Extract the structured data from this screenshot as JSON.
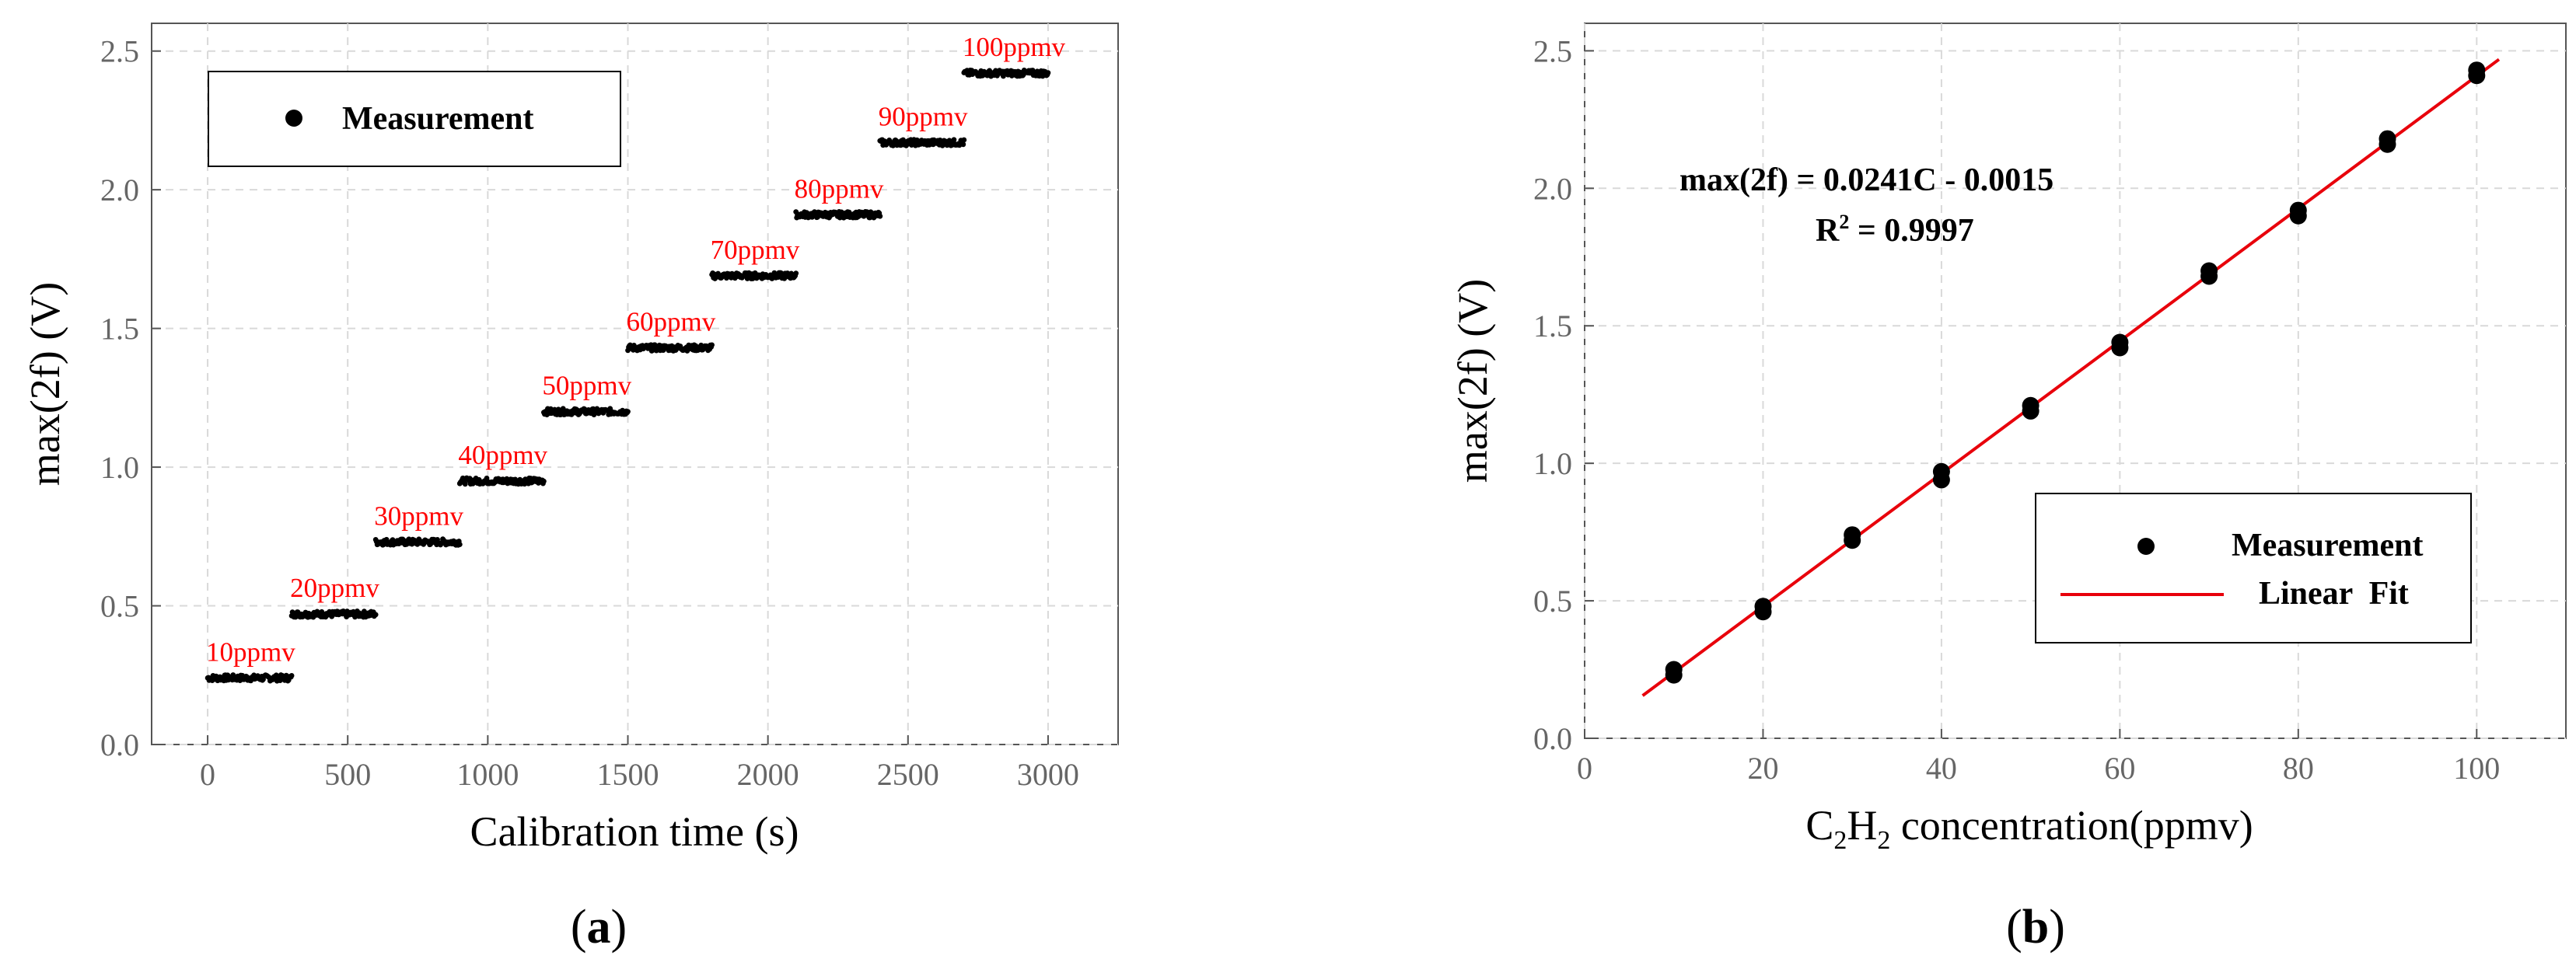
{
  "chart_data": [
    {
      "panel": "a",
      "type": "scatter",
      "xlabel": "Calibration time (s)",
      "ylabel": "max(2f) (V)",
      "xlim": [
        -200,
        3250
      ],
      "ylim": [
        0,
        2.6
      ],
      "xticks": [
        0,
        500,
        1000,
        1500,
        2000,
        2500,
        3000
      ],
      "yticks": [
        0.0,
        0.5,
        1.0,
        1.5,
        2.0,
        2.5
      ],
      "xtick_labels": [
        "0",
        "500",
        "1000",
        "1500",
        "2000",
        "2500",
        "3000"
      ],
      "ytick_labels": [
        "0.0",
        "0.5",
        "1.0",
        "1.5",
        "2.0",
        "2.5"
      ],
      "legend": {
        "entries": [
          "Measurement"
        ],
        "position": "top-left"
      },
      "series": [
        {
          "name": "Measurement",
          "segments": [
            {
              "label": "10ppmv",
              "t_start": 0,
              "t_end": 300,
              "value": 0.24
            },
            {
              "label": "20ppmv",
              "t_start": 300,
              "t_end": 600,
              "value": 0.47
            },
            {
              "label": "30ppmv",
              "t_start": 600,
              "t_end": 900,
              "value": 0.73
            },
            {
              "label": "40ppmv",
              "t_start": 900,
              "t_end": 1200,
              "value": 0.95
            },
            {
              "label": "50ppmv",
              "t_start": 1200,
              "t_end": 1500,
              "value": 1.2
            },
            {
              "label": "60ppmv",
              "t_start": 1500,
              "t_end": 1800,
              "value": 1.43
            },
            {
              "label": "70ppmv",
              "t_start": 1800,
              "t_end": 2100,
              "value": 1.69
            },
            {
              "label": "80ppmv",
              "t_start": 2100,
              "t_end": 2400,
              "value": 1.91
            },
            {
              "label": "90ppmv",
              "t_start": 2400,
              "t_end": 2700,
              "value": 2.17
            },
            {
              "label": "100ppmv",
              "t_start": 2700,
              "t_end": 3000,
              "value": 2.42
            }
          ]
        }
      ],
      "panel_label": {
        "open": "(",
        "letter": "a",
        "close": ")"
      }
    },
    {
      "panel": "b",
      "type": "scatter",
      "xlabel_parts": {
        "c": "C",
        "sub1": "2",
        "h": "H",
        "sub2": "2",
        "rest": " concentration(ppmv)"
      },
      "ylabel": "max(2f) (V)",
      "xlim": [
        0,
        110
      ],
      "ylim": [
        0,
        2.6
      ],
      "xticks": [
        0,
        20,
        40,
        60,
        80,
        100
      ],
      "yticks": [
        0.0,
        0.5,
        1.0,
        1.5,
        2.0,
        2.5
      ],
      "xtick_labels": [
        "0",
        "20",
        "40",
        "60",
        "80",
        "100"
      ],
      "ytick_labels": [
        "0.0",
        "0.5",
        "1.0",
        "1.5",
        "2.0",
        "2.5"
      ],
      "legend": {
        "entries": [
          "Measurement",
          "Linear  Fit"
        ],
        "position": "bottom-right"
      },
      "series": [
        {
          "name": "Measurement",
          "x": [
            10,
            10,
            20,
            20,
            30,
            30,
            40,
            40,
            50,
            50,
            60,
            60,
            70,
            70,
            80,
            80,
            90,
            90,
            100,
            100
          ],
          "y": [
            0.25,
            0.23,
            0.48,
            0.46,
            0.74,
            0.72,
            0.97,
            0.94,
            1.21,
            1.19,
            1.44,
            1.42,
            1.7,
            1.68,
            1.92,
            1.9,
            2.18,
            2.16,
            2.43,
            2.41
          ]
        },
        {
          "name": "Linear  Fit",
          "type": "line",
          "slope": 0.0241,
          "intercept": -0.0015,
          "x_range": [
            6.5,
            102.5
          ]
        }
      ],
      "color_fit": "#e8000b",
      "equation": "max(2f) = 0.0241C - 0.0015",
      "r2": {
        "prefix": "R",
        "sup": "2",
        "rest": " = 0.9997"
      },
      "panel_label": {
        "open": "(",
        "letter": "b",
        "close": ")"
      }
    }
  ]
}
